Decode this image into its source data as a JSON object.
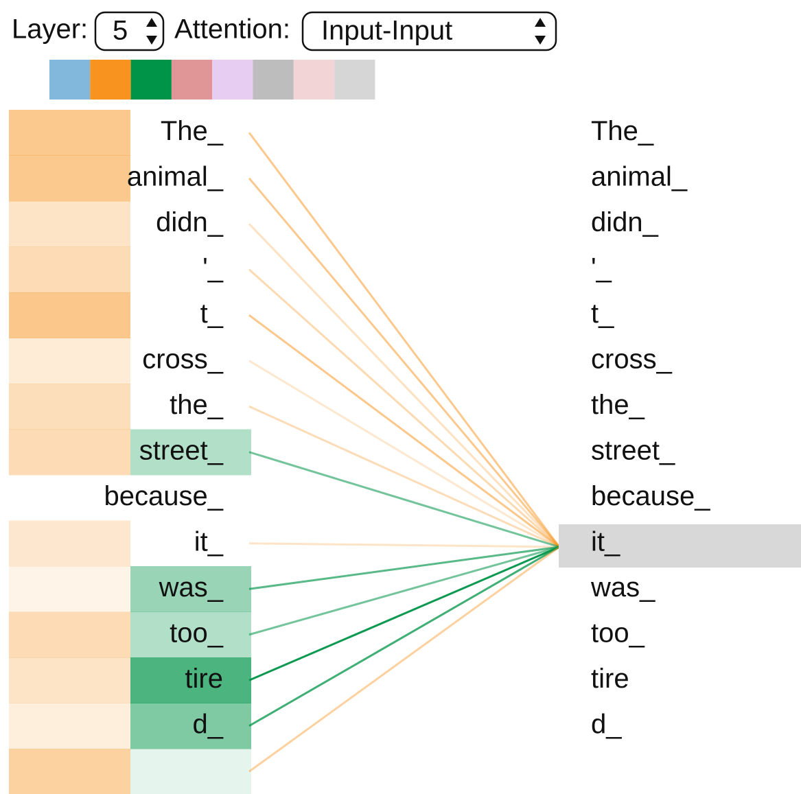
{
  "controls": {
    "layer_label": "Layer:",
    "layer_value": "5",
    "attention_label": "Attention:",
    "attention_value": "Input-Input"
  },
  "left_tokens": [
    "The_",
    "animal_",
    "didn_",
    "'_",
    "t_",
    "cross_",
    "the_",
    "street_",
    "because_",
    "it_",
    "was_",
    "too_",
    "tire",
    "d_"
  ],
  "right_tokens": [
    "The_",
    "animal_",
    "didn_",
    "'_",
    "t_",
    "cross_",
    "the_",
    "street_",
    "because_",
    "it_",
    "was_",
    "too_",
    "tire",
    "d_"
  ]
}
